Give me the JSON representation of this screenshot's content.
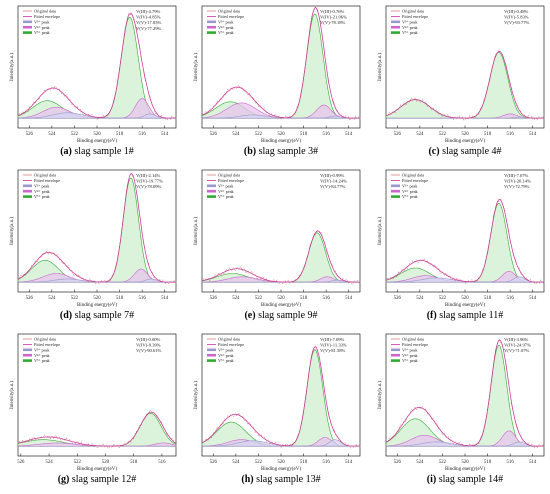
{
  "figure_labels": {
    "x_axis": "Binding energy(eV)",
    "y_axis": "Intensity(a.u.)",
    "legend": [
      "Original data",
      "Fitted envelope",
      "V³⁺ peak",
      "V⁴⁺ peak",
      "V⁵⁺ peak"
    ]
  },
  "colors": {
    "original": "#d98080",
    "fitted": "#cc3399",
    "v3": "#9999cc",
    "v4": "#cc66cc",
    "v5": "#33aa33",
    "v5_fill": "#cfeecf",
    "v4_fill": "#e8c4ee",
    "v3_fill": "#d4d4f0"
  },
  "chart_data": [
    {
      "type": "area",
      "caption_letter": "(a)",
      "caption_text": "slag sample 1#",
      "annotations": [
        "V(III)-4.79%",
        "V(IV)-4.85%",
        "V(V)-17.83%",
        "V(V)-77.29%"
      ],
      "xticks": [
        526,
        524,
        522,
        520,
        518,
        516,
        514
      ],
      "xlim": [
        527,
        513
      ],
      "peaks": {
        "v5": [
          {
            "center": 517.1,
            "height": 0.92,
            "width": 0.75
          },
          {
            "center": 524.4,
            "height": 0.16,
            "width": 1.3
          }
        ],
        "v4": [
          {
            "center": 516.0,
            "height": 0.18,
            "width": 0.6
          },
          {
            "center": 523.6,
            "height": 0.1,
            "width": 1.2
          }
        ],
        "v3": [
          {
            "center": 515.3,
            "height": 0.04,
            "width": 0.5
          },
          {
            "center": 522.6,
            "height": 0.05,
            "width": 1.3
          }
        ]
      }
    },
    {
      "type": "area",
      "caption_letter": "(b)",
      "caption_text": "slag sample 3#",
      "annotations": [
        "V(III)-0.76%",
        "V(IV)-21.06%",
        "V(V)-78.18%"
      ],
      "xticks": [
        526,
        524,
        522,
        520,
        518,
        516,
        514
      ],
      "xlim": [
        527,
        513
      ],
      "peaks": {
        "v5": [
          {
            "center": 517.0,
            "height": 0.95,
            "width": 0.72
          },
          {
            "center": 524.5,
            "height": 0.15,
            "width": 1.3
          }
        ],
        "v4": [
          {
            "center": 516.2,
            "height": 0.12,
            "width": 0.65
          },
          {
            "center": 523.5,
            "height": 0.14,
            "width": 1.3
          }
        ],
        "v3": [
          {
            "center": 515.2,
            "height": 0.02,
            "width": 0.5
          },
          {
            "center": 522.5,
            "height": 0.03,
            "width": 1.2
          }
        ]
      }
    },
    {
      "type": "area",
      "caption_letter": "(c)",
      "caption_text": "slag sample 4#",
      "annotations": [
        "V(III)-0.48%",
        "V(IV)-5.83%",
        "V(V)-93.77%"
      ],
      "xticks": [
        526,
        524,
        522,
        520,
        518,
        516,
        514
      ],
      "xlim": [
        527,
        513
      ],
      "peaks": {
        "v5": [
          {
            "center": 517.0,
            "height": 0.6,
            "width": 0.8
          },
          {
            "center": 524.4,
            "height": 0.17,
            "width": 1.3
          }
        ],
        "v4": [
          {
            "center": 516.0,
            "height": 0.04,
            "width": 0.6
          }
        ],
        "v3": [
          {
            "center": 515.2,
            "height": 0.01,
            "width": 0.5
          }
        ]
      }
    },
    {
      "type": "area",
      "caption_letter": "(d)",
      "caption_text": "slag sample 7#",
      "annotations": [
        "V(III)-2.14%",
        "V(IV)-19.77%",
        "V(V)-78.09%"
      ],
      "xticks": [
        526,
        524,
        522,
        520,
        518,
        516,
        514
      ],
      "xlim": [
        527,
        513
      ],
      "peaks": {
        "v5": [
          {
            "center": 517.0,
            "height": 0.95,
            "width": 0.68
          },
          {
            "center": 524.6,
            "height": 0.2,
            "width": 1.2
          }
        ],
        "v4": [
          {
            "center": 516.1,
            "height": 0.12,
            "width": 0.6
          },
          {
            "center": 523.6,
            "height": 0.08,
            "width": 1.2
          }
        ],
        "v3": [
          {
            "center": 515.2,
            "height": 0.03,
            "width": 0.5
          },
          {
            "center": 522.6,
            "height": 0.03,
            "width": 1.2
          }
        ]
      }
    },
    {
      "type": "area",
      "caption_letter": "(e)",
      "caption_text": "slag sample 9#",
      "annotations": [
        "V(III)-0.99%",
        "V(IV)-14.24%",
        "V(V)-84.77%"
      ],
      "xticks": [
        526,
        524,
        522,
        520,
        518,
        516,
        514
      ],
      "xlim": [
        527,
        513
      ],
      "peaks": {
        "v5": [
          {
            "center": 516.8,
            "height": 0.45,
            "width": 0.75
          },
          {
            "center": 524.3,
            "height": 0.08,
            "width": 1.4
          }
        ],
        "v4": [
          {
            "center": 515.9,
            "height": 0.05,
            "width": 0.6
          },
          {
            "center": 523.4,
            "height": 0.05,
            "width": 1.3
          }
        ],
        "v3": [
          {
            "center": 515.0,
            "height": 0.02,
            "width": 0.5
          }
        ]
      }
    },
    {
      "type": "area",
      "caption_letter": "(f)",
      "caption_text": "slag sample 11#",
      "annotations": [
        "V(III)-7.07%",
        "V(IV)-20.14%",
        "V(V)-72.79%"
      ],
      "xticks": [
        526,
        524,
        522,
        520,
        518,
        516,
        514
      ],
      "xlim": [
        527,
        513
      ],
      "peaks": {
        "v5": [
          {
            "center": 517.0,
            "height": 0.72,
            "width": 0.72
          },
          {
            "center": 524.4,
            "height": 0.13,
            "width": 1.3
          }
        ],
        "v4": [
          {
            "center": 516.1,
            "height": 0.1,
            "width": 0.6
          },
          {
            "center": 523.5,
            "height": 0.06,
            "width": 1.2
          }
        ],
        "v3": [
          {
            "center": 515.2,
            "height": 0.05,
            "width": 0.5
          },
          {
            "center": 522.5,
            "height": 0.04,
            "width": 1.3
          }
        ]
      }
    },
    {
      "type": "area",
      "caption_letter": "(g)",
      "caption_text": "slag sample 12#",
      "annotations": [
        "V(III)-0.00%",
        "V(IV)-9.39%",
        "V(V)-90.61%"
      ],
      "xticks": [
        526,
        524,
        522,
        520,
        518,
        516
      ],
      "xlim": [
        526.2,
        515
      ],
      "peaks": {
        "v5": [
          {
            "center": 516.8,
            "height": 0.3,
            "width": 0.75
          },
          {
            "center": 524.4,
            "height": 0.06,
            "width": 1.4
          }
        ],
        "v4": [
          {
            "center": 515.9,
            "height": 0.03,
            "width": 0.6
          },
          {
            "center": 523.4,
            "height": 0.03,
            "width": 1.3
          }
        ],
        "v3": []
      }
    },
    {
      "type": "area",
      "caption_letter": "(h)",
      "caption_text": "slag sample 13#",
      "annotations": [
        "V(III)-7.09%",
        "V(IV)-11.33%",
        "V(V)-81.58%"
      ],
      "xticks": [
        526,
        524,
        522,
        520,
        518,
        516,
        514
      ],
      "xlim": [
        527,
        513
      ],
      "peaks": {
        "v5": [
          {
            "center": 517.0,
            "height": 0.88,
            "width": 0.7
          },
          {
            "center": 524.4,
            "height": 0.22,
            "width": 1.3
          }
        ],
        "v4": [
          {
            "center": 516.1,
            "height": 0.08,
            "width": 0.6
          },
          {
            "center": 523.5,
            "height": 0.06,
            "width": 1.2
          }
        ],
        "v3": [
          {
            "center": 515.2,
            "height": 0.06,
            "width": 0.5
          },
          {
            "center": 522.5,
            "height": 0.05,
            "width": 1.3
          }
        ]
      }
    },
    {
      "type": "area",
      "caption_letter": "(i)",
      "caption_text": "slag sample 14#",
      "annotations": [
        "V(III)-3.96%",
        "V(IV)-24.97%",
        "V(V)-71.07%"
      ],
      "xticks": [
        526,
        524,
        522,
        520,
        518,
        516,
        514
      ],
      "xlim": [
        527,
        513
      ],
      "peaks": {
        "v5": [
          {
            "center": 517.0,
            "height": 0.92,
            "width": 0.7
          },
          {
            "center": 524.4,
            "height": 0.25,
            "width": 1.3
          }
        ],
        "v4": [
          {
            "center": 516.1,
            "height": 0.14,
            "width": 0.6
          },
          {
            "center": 523.6,
            "height": 0.1,
            "width": 1.2
          }
        ],
        "v3": [
          {
            "center": 515.2,
            "height": 0.04,
            "width": 0.5
          },
          {
            "center": 522.5,
            "height": 0.04,
            "width": 1.3
          }
        ]
      }
    }
  ]
}
